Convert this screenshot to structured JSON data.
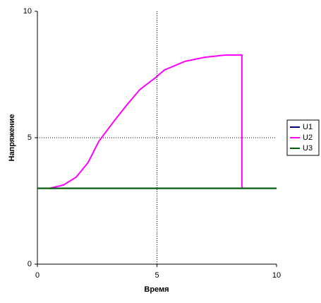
{
  "chart_data": {
    "type": "line",
    "xlabel": "Время",
    "ylabel": "Напряжение",
    "xlim": [
      0,
      10
    ],
    "ylim": [
      0,
      10
    ],
    "xticks": [
      0,
      5,
      10
    ],
    "yticks": [
      0,
      5,
      10
    ],
    "grid": true,
    "legend": "right",
    "series": [
      {
        "name": "U1",
        "color": "#000080",
        "x": [
          0,
          10
        ],
        "values": [
          3,
          3
        ]
      },
      {
        "name": "U2",
        "color": "#ff00ff",
        "x": [
          0.5,
          1.09,
          1.62,
          2.12,
          2.57,
          3.24,
          3.75,
          4.28,
          4.93,
          5.31,
          6.17,
          6.99,
          7.88,
          8.55,
          8.55
        ],
        "values": [
          3.0,
          3.13,
          3.44,
          4.02,
          4.86,
          5.7,
          6.31,
          6.9,
          7.37,
          7.68,
          8.02,
          8.18,
          8.27,
          8.27,
          3.0
        ]
      },
      {
        "name": "U3",
        "color": "#006400",
        "x": [
          0,
          10
        ],
        "values": [
          3,
          3
        ]
      }
    ]
  }
}
